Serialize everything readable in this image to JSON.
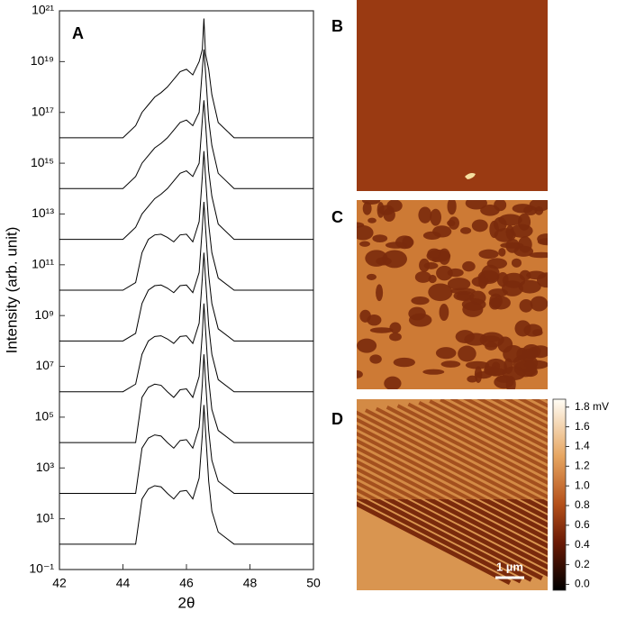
{
  "chart_data": {
    "type": "line",
    "panel_label": "A",
    "xlabel": "2θ",
    "ylabel": "Intensity (arb. unit)",
    "x": [
      42,
      43,
      44,
      44.4,
      44.6,
      44.8,
      45,
      45.2,
      45.4,
      45.6,
      45.8,
      46,
      46.2,
      46.4,
      46.5,
      46.55,
      46.6,
      46.7,
      46.8,
      47,
      47.5,
      48,
      49,
      50
    ],
    "series": [
      {
        "color": "#000000",
        "values": [
          1,
          1,
          1,
          1,
          60,
          150,
          200,
          180,
          100,
          60,
          120,
          130,
          60,
          400,
          20000.0,
          300000.0,
          30000.0,
          300,
          20,
          3,
          1,
          1,
          1,
          1
        ]
      },
      {
        "color": "#000000",
        "values": [
          100.0,
          100.0,
          100.0,
          100.0,
          6000.0,
          15000.0,
          20000.0,
          18000.0,
          10000.0,
          6000.0,
          12000.0,
          13000.0,
          6000.0,
          40000.0,
          2000000.0,
          30000000.0,
          3000000.0,
          30000.0,
          2000.0,
          300.0,
          100.0,
          100.0,
          100.0,
          100.0
        ]
      },
      {
        "color": "#000000",
        "values": [
          10000.0,
          10000.0,
          10000.0,
          10000.0,
          600000.0,
          1500000.0,
          2000000.0,
          1800000.0,
          1000000.0,
          600000.0,
          1200000.0,
          1300000.0,
          600000.0,
          4000000.0,
          200000000.0,
          3000000000.0,
          300000000.0,
          3000000.0,
          200000.0,
          30000.0,
          10000.0,
          10000.0,
          10000.0,
          10000.0
        ]
      },
      {
        "color": "#000000",
        "values": [
          1000000.0,
          1000000.0,
          1000000.0,
          2000000.0,
          30000000.0,
          100000000.0,
          150000000.0,
          160000000.0,
          120000000.0,
          80000000.0,
          150000000.0,
          160000000.0,
          80000000.0,
          500000000.0,
          30000000000.0,
          300000000000.0,
          30000000000.0,
          400000000.0,
          30000000.0,
          3000000.0,
          1000000.0,
          1000000.0,
          1000000.0,
          1000000.0
        ]
      },
      {
        "color": "#000000",
        "values": [
          100000000.0,
          100000000.0,
          100000000.0,
          200000000.0,
          3000000000.0,
          10000000000.0,
          15000000000.0,
          16000000000.0,
          12000000000.0,
          8000000000.0,
          15000000000.0,
          16000000000.0,
          8000000000.0,
          50000000000.0,
          3000000000000.0,
          30000000000000.0,
          3000000000000.0,
          40000000000.0,
          3000000000.0,
          300000000.0,
          100000000.0,
          100000000.0,
          100000000.0,
          100000000.0
        ]
      },
      {
        "color": "#000000",
        "values": [
          10000000000.0,
          10000000000.0,
          10000000000.0,
          20000000000.0,
          300000000000.0,
          1000000000000.0,
          1500000000000.0,
          1600000000000.0,
          1200000000000.0,
          800000000000.0,
          1500000000000.0,
          1600000000000.0,
          800000000000.0,
          5000000000000.0,
          300000000000000.0,
          3000000000000000.0,
          300000000000000.0,
          4000000000000.0,
          300000000000.0,
          30000000000.0,
          10000000000.0,
          10000000000.0,
          10000000000.0,
          10000000000.0
        ]
      },
      {
        "color": "#000000",
        "values": [
          1000000000000.0,
          1000000000000.0,
          1000000000000.0,
          3000000000000.0,
          10000000000000.0,
          20000000000000.0,
          40000000000000.0,
          60000000000000.0,
          100000000000000.0,
          200000000000000.0,
          400000000000000.0,
          500000000000000.0,
          300000000000000.0,
          1000000000000000.0,
          5e+16,
          3e+17,
          4e+16,
          500000000000000.0,
          50000000000000.0,
          4000000000000.0,
          1000000000000.0,
          1000000000000.0,
          1000000000000.0,
          1000000000000.0
        ]
      },
      {
        "color": "#000000",
        "values": [
          100000000000000.0,
          100000000000000.0,
          100000000000000.0,
          300000000000000.0,
          1000000000000000.0,
          2000000000000000.0,
          4000000000000000.0,
          6000000000000000.0,
          1e+16,
          2e+16,
          4e+16,
          5e+16,
          3e+16,
          1e+17,
          5e+18,
          3e+19,
          4e+18,
          5e+16,
          5000000000000000.0,
          400000000000000.0,
          100000000000000.0,
          100000000000000.0,
          100000000000000.0,
          100000000000000.0
        ]
      },
      {
        "color": "#000000",
        "values": [
          1e+16,
          1e+16,
          1e+16,
          3e+16,
          1e+17,
          2e+17,
          4e+17,
          6e+17,
          1e+18,
          2e+18,
          4e+18,
          5e+18,
          3e+18,
          1e+19,
          3e+19,
          5e+20,
          2e+19,
          5e+18,
          5e+17,
          4e+16,
          1e+16,
          1e+16,
          1e+16,
          1e+16
        ]
      }
    ],
    "xlim": [
      42,
      50
    ],
    "xticks": [
      42,
      44,
      46,
      48,
      50
    ],
    "ylim": [
      0.1,
      1e+21
    ],
    "log_y": true,
    "yticks": [
      {
        "value": 0.1,
        "label": "10⁻¹"
      },
      {
        "value": 10,
        "label": "10¹"
      },
      {
        "value": 1000,
        "label": "10³"
      },
      {
        "value": 100000.0,
        "label": "10⁵"
      },
      {
        "value": 10000000.0,
        "label": "10⁷"
      },
      {
        "value": 1000000000.0,
        "label": "10⁹"
      },
      {
        "value": 100000000000.0,
        "label": "10¹¹"
      },
      {
        "value": 10000000000000.0,
        "label": "10¹³"
      },
      {
        "value": 1000000000000000.0,
        "label": "10¹⁵"
      },
      {
        "value": 1e+17,
        "label": "10¹⁷"
      },
      {
        "value": 1e+19,
        "label": "10¹⁹"
      },
      {
        "value": 1e+21,
        "label": "10²¹"
      }
    ]
  },
  "images": [
    {
      "label": "B"
    },
    {
      "label": "C"
    },
    {
      "label": "D",
      "scale_bar": "1 µm"
    }
  ],
  "colorbar": {
    "lim": [
      -0.06,
      1.88
    ],
    "ticks": [
      {
        "value": 0,
        "label": "0.0"
      },
      {
        "value": 0.2,
        "label": "0.2"
      },
      {
        "value": 0.4,
        "label": "0.4"
      },
      {
        "value": 0.6,
        "label": "0.6"
      },
      {
        "value": 0.8,
        "label": "0.8"
      },
      {
        "value": 1,
        "label": "1.0"
      },
      {
        "value": 1.2,
        "label": "1.2"
      },
      {
        "value": 1.4,
        "label": "1.4"
      },
      {
        "value": 1.6,
        "label": "1.6"
      },
      {
        "value": 1.8,
        "label": "1.8 mV"
      }
    ]
  }
}
